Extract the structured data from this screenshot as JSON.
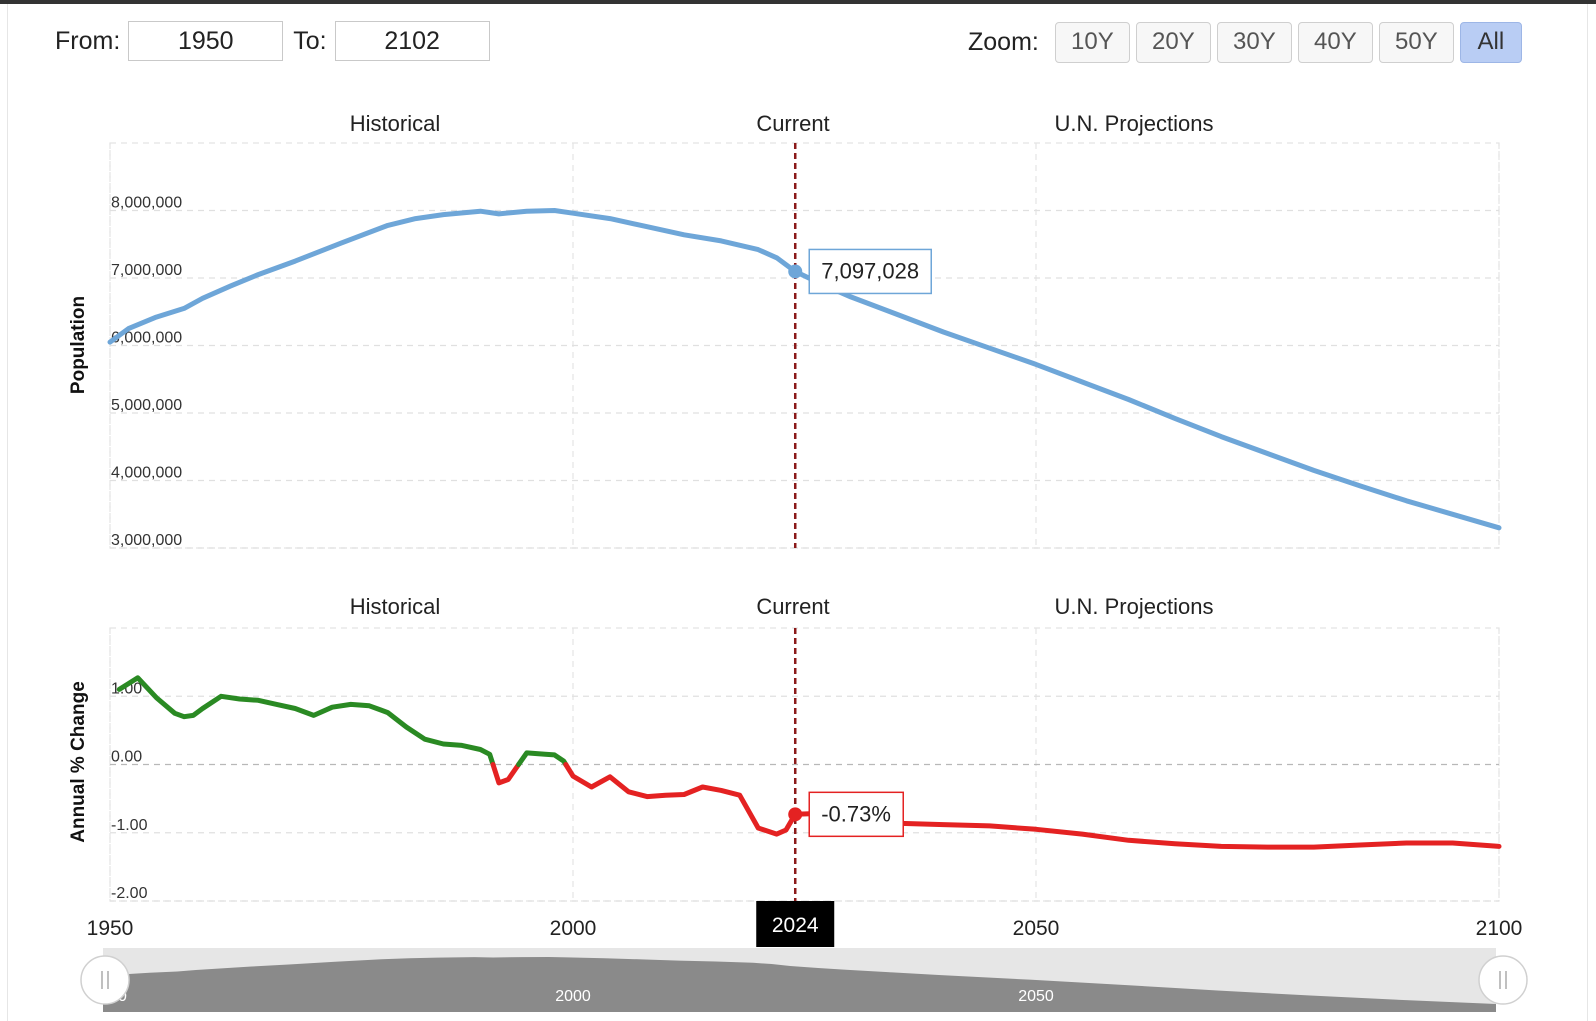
{
  "range": {
    "from_label": "From:",
    "from_value": "1950",
    "to_label": "To:",
    "to_value": "2102"
  },
  "zoom": {
    "label": "Zoom:",
    "buttons": [
      "10Y",
      "20Y",
      "30Y",
      "40Y",
      "50Y",
      "All"
    ],
    "active": "All"
  },
  "colors": {
    "population_line": "#6ea6d8",
    "change_positive": "#2a8a23",
    "change_negative": "#e42222",
    "current_marker": "#8b1a1a"
  },
  "chart_data": [
    {
      "type": "line",
      "ylabel": "Population",
      "section_labels": [
        "Historical",
        "Current",
        "U.N. Projections"
      ],
      "x_ticks": [
        "1950",
        "2000",
        "2050",
        "2100"
      ],
      "y_ticks": [
        "8,000,000",
        "7,000,000",
        "6,000,000",
        "5,000,000",
        "4,000,000",
        "3,000,000"
      ],
      "y_tick_values": [
        8000000,
        7000000,
        6000000,
        5000000,
        4000000,
        3000000
      ],
      "ylim": [
        3000000,
        9000000
      ],
      "xlim": [
        1950,
        2100
      ],
      "current_year": 2024,
      "current_year_label": "2024",
      "tooltip": "7,097,028",
      "tooltip_value": 7097028,
      "series": [
        {
          "x": [
            1950,
            1952,
            1955,
            1958,
            1960,
            1963,
            1966,
            1970,
            1975,
            1980,
            1983,
            1986,
            1990,
            1992,
            1995,
            1998,
            2000,
            2004,
            2008,
            2012,
            2016,
            2020,
            2022,
            2024,
            2027,
            2030,
            2035,
            2040,
            2045,
            2050,
            2055,
            2060,
            2065,
            2070,
            2075,
            2080,
            2085,
            2090,
            2095,
            2100
          ],
          "values": [
            6050000,
            6250000,
            6420000,
            6550000,
            6700000,
            6880000,
            7050000,
            7250000,
            7520000,
            7780000,
            7880000,
            7940000,
            7990000,
            7950000,
            7990000,
            8000000,
            7960000,
            7880000,
            7760000,
            7640000,
            7550000,
            7420000,
            7300000,
            7097028,
            6900000,
            6720000,
            6460000,
            6200000,
            5960000,
            5720000,
            5460000,
            5200000,
            4920000,
            4650000,
            4400000,
            4150000,
            3920000,
            3700000,
            3500000,
            3300000
          ]
        }
      ]
    },
    {
      "type": "line",
      "ylabel": "Annual % Change",
      "section_labels": [
        "Historical",
        "Current",
        "U.N. Projections"
      ],
      "x_ticks": [
        "1950",
        "2000",
        "2050",
        "2100"
      ],
      "y_ticks": [
        "1.00",
        "0.00",
        "-1.00",
        "-2.00"
      ],
      "y_tick_values": [
        1,
        0,
        -1,
        -2
      ],
      "ylim": [
        -2,
        2
      ],
      "xlim": [
        1950,
        2100
      ],
      "current_year": 2024,
      "tooltip": "-0.73%",
      "tooltip_value": -0.73,
      "series": [
        {
          "x": [
            1951,
            1953,
            1955,
            1957,
            1958,
            1959,
            1960,
            1962,
            1964,
            1966,
            1968,
            1970,
            1972,
            1974,
            1976,
            1978,
            1980,
            1982,
            1984,
            1986,
            1988,
            1990,
            1991,
            1992,
            1993,
            1995,
            1997,
            1998,
            1999,
            2000,
            2002,
            2004,
            2006,
            2008,
            2010,
            2012,
            2014,
            2016,
            2018,
            2020,
            2022,
            2023,
            2024,
            2026,
            2030,
            2035,
            2040,
            2045,
            2050,
            2055,
            2060,
            2065,
            2070,
            2075,
            2080,
            2085,
            2090,
            2095,
            2100
          ],
          "values": [
            1.1,
            1.27,
            0.98,
            0.75,
            0.7,
            0.72,
            0.82,
            1.0,
            0.96,
            0.94,
            0.88,
            0.82,
            0.72,
            0.84,
            0.88,
            0.86,
            0.76,
            0.55,
            0.37,
            0.3,
            0.28,
            0.22,
            0.15,
            -0.27,
            -0.22,
            0.17,
            0.15,
            0.14,
            0.05,
            -0.17,
            -0.33,
            -0.18,
            -0.4,
            -0.47,
            -0.45,
            -0.44,
            -0.33,
            -0.38,
            -0.45,
            -0.93,
            -1.02,
            -0.96,
            -0.73,
            -0.72,
            -0.82,
            -0.86,
            -0.88,
            -0.9,
            -0.95,
            -1.02,
            -1.11,
            -1.16,
            -1.2,
            -1.21,
            -1.21,
            -1.18,
            -1.15,
            -1.15,
            -1.2
          ]
        }
      ]
    }
  ],
  "navigator": {
    "labels": [
      "2000",
      "2050"
    ],
    "first_label_fragment": "0"
  }
}
